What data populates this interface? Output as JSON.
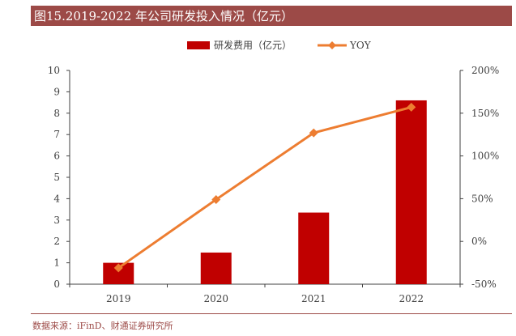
{
  "header": {
    "title": "图15.2019-2022 年公司研发投入情况（亿元）"
  },
  "footer": {
    "source": "数据来源：iFinD、财通证券研究所"
  },
  "colors": {
    "title_bg": "#9c4a47",
    "bar": "#c00000",
    "line": "#ed7d31",
    "axis": "#404040"
  },
  "chart_data": {
    "type": "bar",
    "title": "",
    "categories": [
      "2019",
      "2020",
      "2021",
      "2022"
    ],
    "series": [
      {
        "name": "研发费用（亿元）",
        "type": "bar",
        "axis": "left",
        "values": [
          1.0,
          1.48,
          3.35,
          8.6
        ]
      },
      {
        "name": "YOY",
        "type": "line",
        "axis": "right",
        "values": [
          -31,
          49,
          127,
          157
        ]
      }
    ],
    "y_left": {
      "ylim": [
        0,
        10
      ],
      "ticks": [
        "0",
        "1",
        "2",
        "3",
        "4",
        "5",
        "6",
        "7",
        "8",
        "9",
        "10"
      ]
    },
    "y_right": {
      "ylim": [
        -50,
        200
      ],
      "ticks": [
        "-50%",
        "0%",
        "50%",
        "100%",
        "150%",
        "200%"
      ]
    },
    "legend": {
      "position": "top"
    },
    "grid": false
  }
}
